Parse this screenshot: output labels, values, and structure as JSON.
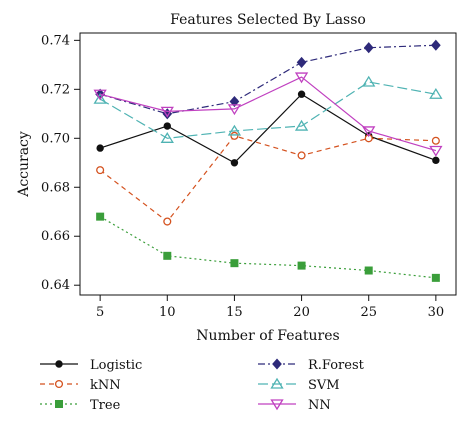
{
  "chart_data": {
    "type": "line",
    "title": "Features Selected By Lasso",
    "xlabel": "Number of Features",
    "ylabel": "Accuracy",
    "x": [
      5,
      10,
      15,
      20,
      25,
      30
    ],
    "xlim": [
      3.5,
      31.5
    ],
    "ylim": [
      0.636,
      0.743
    ],
    "xticks": [
      "5",
      "10",
      "15",
      "20",
      "25",
      "30"
    ],
    "yticks": [
      0.64,
      0.66,
      0.68,
      0.7,
      0.72,
      0.74
    ],
    "ytick_labels": [
      "0.64",
      "0.66",
      "0.68",
      "0.70",
      "0.72",
      "0.74"
    ],
    "grid": false,
    "legend_position": "bottom",
    "series": [
      {
        "name": "Logistic",
        "values": [
          0.696,
          0.705,
          0.69,
          0.718,
          0.701,
          0.691
        ],
        "color": "#111111",
        "dash": "solid",
        "marker": "circle-filled"
      },
      {
        "name": "R.Forest",
        "values": [
          0.718,
          0.71,
          0.715,
          0.731,
          0.737,
          0.738
        ],
        "color": "#2e2a7a",
        "dash": "dashdot",
        "marker": "diamond"
      },
      {
        "name": "kNN",
        "values": [
          0.687,
          0.666,
          0.701,
          0.693,
          0.7,
          0.699
        ],
        "color": "#d4521f",
        "dash": "dashed",
        "marker": "circle-open"
      },
      {
        "name": "SVM",
        "values": [
          0.716,
          0.7,
          0.703,
          0.705,
          0.723,
          0.718
        ],
        "color": "#4fb3b3",
        "dash": "longdash",
        "marker": "triangle-up"
      },
      {
        "name": "Tree",
        "values": [
          0.668,
          0.652,
          0.649,
          0.648,
          0.646,
          0.643
        ],
        "color": "#3a9e3a",
        "dash": "dotted",
        "marker": "square"
      },
      {
        "name": "NN",
        "values": [
          0.718,
          0.711,
          0.712,
          0.725,
          0.703,
          0.695
        ],
        "color": "#c040c0",
        "dash": "solid",
        "marker": "triangle-down"
      }
    ]
  }
}
